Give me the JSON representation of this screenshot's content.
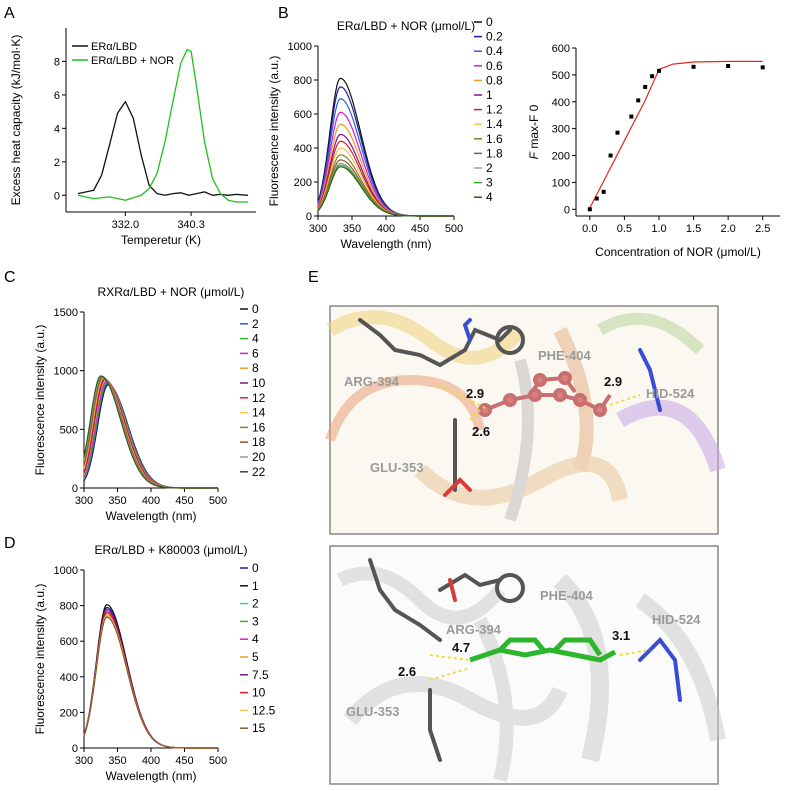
{
  "panels": {
    "A": "A",
    "B": "B",
    "C": "C",
    "D": "D",
    "E": "E"
  },
  "colors": {
    "black": "#111111",
    "navy": "#1a1a9e",
    "blue": "#2b5fd8",
    "magenta": "#d81ad8",
    "orange": "#f39c1f",
    "purple": "#7a1a8c",
    "red": "#e01a2a",
    "yellow": "#f2c84b",
    "olive": "#8a7a2a",
    "brown": "#8b5a2b",
    "gray": "#9a9a9a",
    "green": "#2fb82f",
    "darkgreen": "#2a5a1a",
    "cyan": "#36c8c8",
    "teal": "#2a8a8a",
    "nor_green": "#1fbf1f",
    "fit_red": "#e0281e",
    "ligand_red": "#d98080",
    "ligand_green": "#2db52d"
  },
  "chart_data": [
    {
      "panel": "A",
      "type": "line",
      "xlabel": "Temperetur (K)",
      "ylabel": "Excess heat capacity (kJ/mol·K)",
      "xtick_labels": [
        "332.0",
        "340.3"
      ],
      "xtick_values": [
        332.0,
        340.3
      ],
      "ylim": [
        -1,
        10
      ],
      "yticks": [
        0,
        2,
        4,
        6,
        8
      ],
      "xlim": [
        324.5,
        348.5
      ],
      "series": [
        {
          "name": "ERα/LBD",
          "color": "#111111",
          "x": [
            326,
            328,
            329,
            330,
            331,
            332,
            333,
            334,
            335,
            336,
            337,
            338,
            339,
            340,
            341,
            342,
            343,
            344,
            345,
            346,
            347.5
          ],
          "y": [
            0.1,
            0.3,
            1.2,
            3.0,
            4.9,
            5.6,
            4.6,
            2.4,
            0.6,
            0.1,
            0.0,
            0.1,
            0.15,
            0.0,
            0.1,
            0.2,
            0.0,
            0.05,
            0.0,
            0.05,
            0.0
          ]
        },
        {
          "name": "ERα/LBD + NOR",
          "color": "#1fbf1f",
          "x": [
            326,
            328,
            330,
            332,
            334,
            335,
            336,
            337,
            338,
            339,
            339.8,
            340.3,
            341,
            342,
            343,
            344,
            345,
            346,
            347.5
          ],
          "y": [
            0.0,
            -0.2,
            -0.1,
            -0.3,
            0.0,
            0.4,
            1.3,
            3.2,
            5.6,
            7.9,
            8.7,
            8.6,
            6.5,
            3.2,
            1.0,
            0.1,
            -0.3,
            -0.4,
            -0.4
          ]
        }
      ]
    },
    {
      "panel": "B-left",
      "type": "line",
      "title": "ERα/LBD + NOR (μmol/L)",
      "xlabel": "Wavelength (nm)",
      "ylabel": "Fluorescence intensity (a.u.)",
      "xlim": [
        300,
        500
      ],
      "ylim": [
        0,
        1000
      ],
      "xticks": [
        300,
        350,
        400,
        450,
        500
      ],
      "yticks": [
        0,
        200,
        400,
        600,
        800,
        1000
      ],
      "peak_x": 333,
      "series": [
        {
          "name": "0",
          "color": "#111111",
          "peak": 810
        },
        {
          "name": "0.2",
          "color": "#1a1a9e",
          "peak": 760
        },
        {
          "name": "0.4",
          "color": "#2b5fd8",
          "peak": 690
        },
        {
          "name": "0.6",
          "color": "#d81ad8",
          "peak": 610
        },
        {
          "name": "0.8",
          "color": "#f39c1f",
          "peak": 540
        },
        {
          "name": "1",
          "color": "#7a1a8c",
          "peak": 480
        },
        {
          "name": "1.2",
          "color": "#e01a2a",
          "peak": 440
        },
        {
          "name": "1.4",
          "color": "#f2c84b",
          "peak": 400
        },
        {
          "name": "1.6",
          "color": "#8a7a2a",
          "peak": 360
        },
        {
          "name": "1.8",
          "color": "#8b5a2b",
          "peak": 330
        },
        {
          "name": "2",
          "color": "#9a9a9a",
          "peak": 310
        },
        {
          "name": "3",
          "color": "#2fb82f",
          "peak": 300
        },
        {
          "name": "4",
          "color": "#2a5a1a",
          "peak": 290
        }
      ]
    },
    {
      "panel": "B-right",
      "type": "scatter",
      "xlabel": "Concentration of NOR (μmol/L)",
      "ylabel_main": "F",
      "ylabel_rest": " max-F 0",
      "xlim": [
        -0.2,
        2.75
      ],
      "ylim": [
        -25,
        600
      ],
      "xticks": [
        0.0,
        0.5,
        1.0,
        1.5,
        2.0,
        2.5
      ],
      "xtick_labels": [
        "0.0",
        "0.5",
        "1.0",
        "1.5",
        "2.0",
        "2.5"
      ],
      "yticks": [
        0,
        100,
        200,
        300,
        400,
        500,
        600
      ],
      "points": {
        "x": [
          0.0,
          0.1,
          0.2,
          0.3,
          0.4,
          0.6,
          0.7,
          0.8,
          0.9,
          1.0,
          1.5,
          2.0,
          2.5
        ],
        "y": [
          0,
          40,
          65,
          200,
          285,
          345,
          405,
          455,
          495,
          515,
          530,
          533,
          528
        ]
      },
      "fit": {
        "color": "#e0281e",
        "x": [
          0.0,
          0.2,
          0.4,
          0.6,
          0.8,
          1.0,
          1.2,
          1.5,
          2.0,
          2.5
        ],
        "y": [
          5,
          105,
          205,
          305,
          405,
          520,
          540,
          548,
          550,
          550
        ]
      }
    },
    {
      "panel": "C",
      "type": "line",
      "title": "RXRα/LBD + NOR (μmol/L)",
      "xlabel": "Wavelength (nm)",
      "ylabel": "Fluorescence intensity (a.u.)",
      "xlim": [
        300,
        500
      ],
      "ylim": [
        0,
        1500
      ],
      "xticks": [
        300,
        350,
        400,
        450,
        500
      ],
      "yticks": [
        0,
        500,
        1000,
        1500
      ],
      "series": [
        {
          "name": "0",
          "color": "#111111",
          "peak": 880,
          "peak_x": 336
        },
        {
          "name": "2",
          "color": "#2b5fd8",
          "peak": 890,
          "peak_x": 335
        },
        {
          "name": "4",
          "color": "#2fb82f",
          "peak": 900,
          "peak_x": 334
        },
        {
          "name": "6",
          "color": "#d81ad8",
          "peak": 905,
          "peak_x": 333
        },
        {
          "name": "8",
          "color": "#f39c1f",
          "peak": 915,
          "peak_x": 332
        },
        {
          "name": "10",
          "color": "#7a1a8c",
          "peak": 925,
          "peak_x": 331
        },
        {
          "name": "12",
          "color": "#e01a2a",
          "peak": 930,
          "peak_x": 330
        },
        {
          "name": "14",
          "color": "#f2c84b",
          "peak": 935,
          "peak_x": 329
        },
        {
          "name": "16",
          "color": "#8a7a2a",
          "peak": 940,
          "peak_x": 328
        },
        {
          "name": "18",
          "color": "#8b5a2b",
          "peak": 945,
          "peak_x": 327
        },
        {
          "name": "20",
          "color": "#9a9a9a",
          "peak": 950,
          "peak_x": 326
        },
        {
          "name": "22",
          "color": "#2a5a1a",
          "peak": 955,
          "peak_x": 325
        }
      ]
    },
    {
      "panel": "D",
      "type": "line",
      "title": "ERα/LBD + K80003 (μmol/L)",
      "xlabel": "Wavelength (nm)",
      "ylabel": "Fluorescence intensity (a.u.)",
      "xlim": [
        300,
        500
      ],
      "ylim": [
        0,
        1000
      ],
      "xticks": [
        300,
        350,
        400,
        450,
        500
      ],
      "yticks": [
        0,
        200,
        400,
        600,
        800,
        1000
      ],
      "peak_x": 334,
      "series": [
        {
          "name": "0",
          "color": "#1a1a9e",
          "peak": 790
        },
        {
          "name": "1",
          "color": "#111111",
          "peak": 805
        },
        {
          "name": "2",
          "color": "#36c8c8",
          "peak": 760
        },
        {
          "name": "3",
          "color": "#2fb82f",
          "peak": 740
        },
        {
          "name": "4",
          "color": "#d81ad8",
          "peak": 770
        },
        {
          "name": "5",
          "color": "#f39c1f",
          "peak": 750
        },
        {
          "name": "7.5",
          "color": "#7a1a8c",
          "peak": 780
        },
        {
          "name": "10",
          "color": "#e01a2a",
          "peak": 760
        },
        {
          "name": "12.5",
          "color": "#f2c84b",
          "peak": 745
        },
        {
          "name": "15",
          "color": "#8b5a2b",
          "peak": 735
        }
      ]
    }
  ],
  "panel_e": {
    "top": {
      "residues": [
        "PHE-404",
        "ARG-394",
        "HID-524",
        "GLU-353"
      ],
      "distances": [
        "2.9",
        "2.9",
        "2.6"
      ]
    },
    "bottom": {
      "residues": [
        "PHE-404",
        "ARG-394",
        "HID-524",
        "GLU-353"
      ],
      "distances": [
        "4.7",
        "3.1",
        "2.6"
      ]
    }
  }
}
